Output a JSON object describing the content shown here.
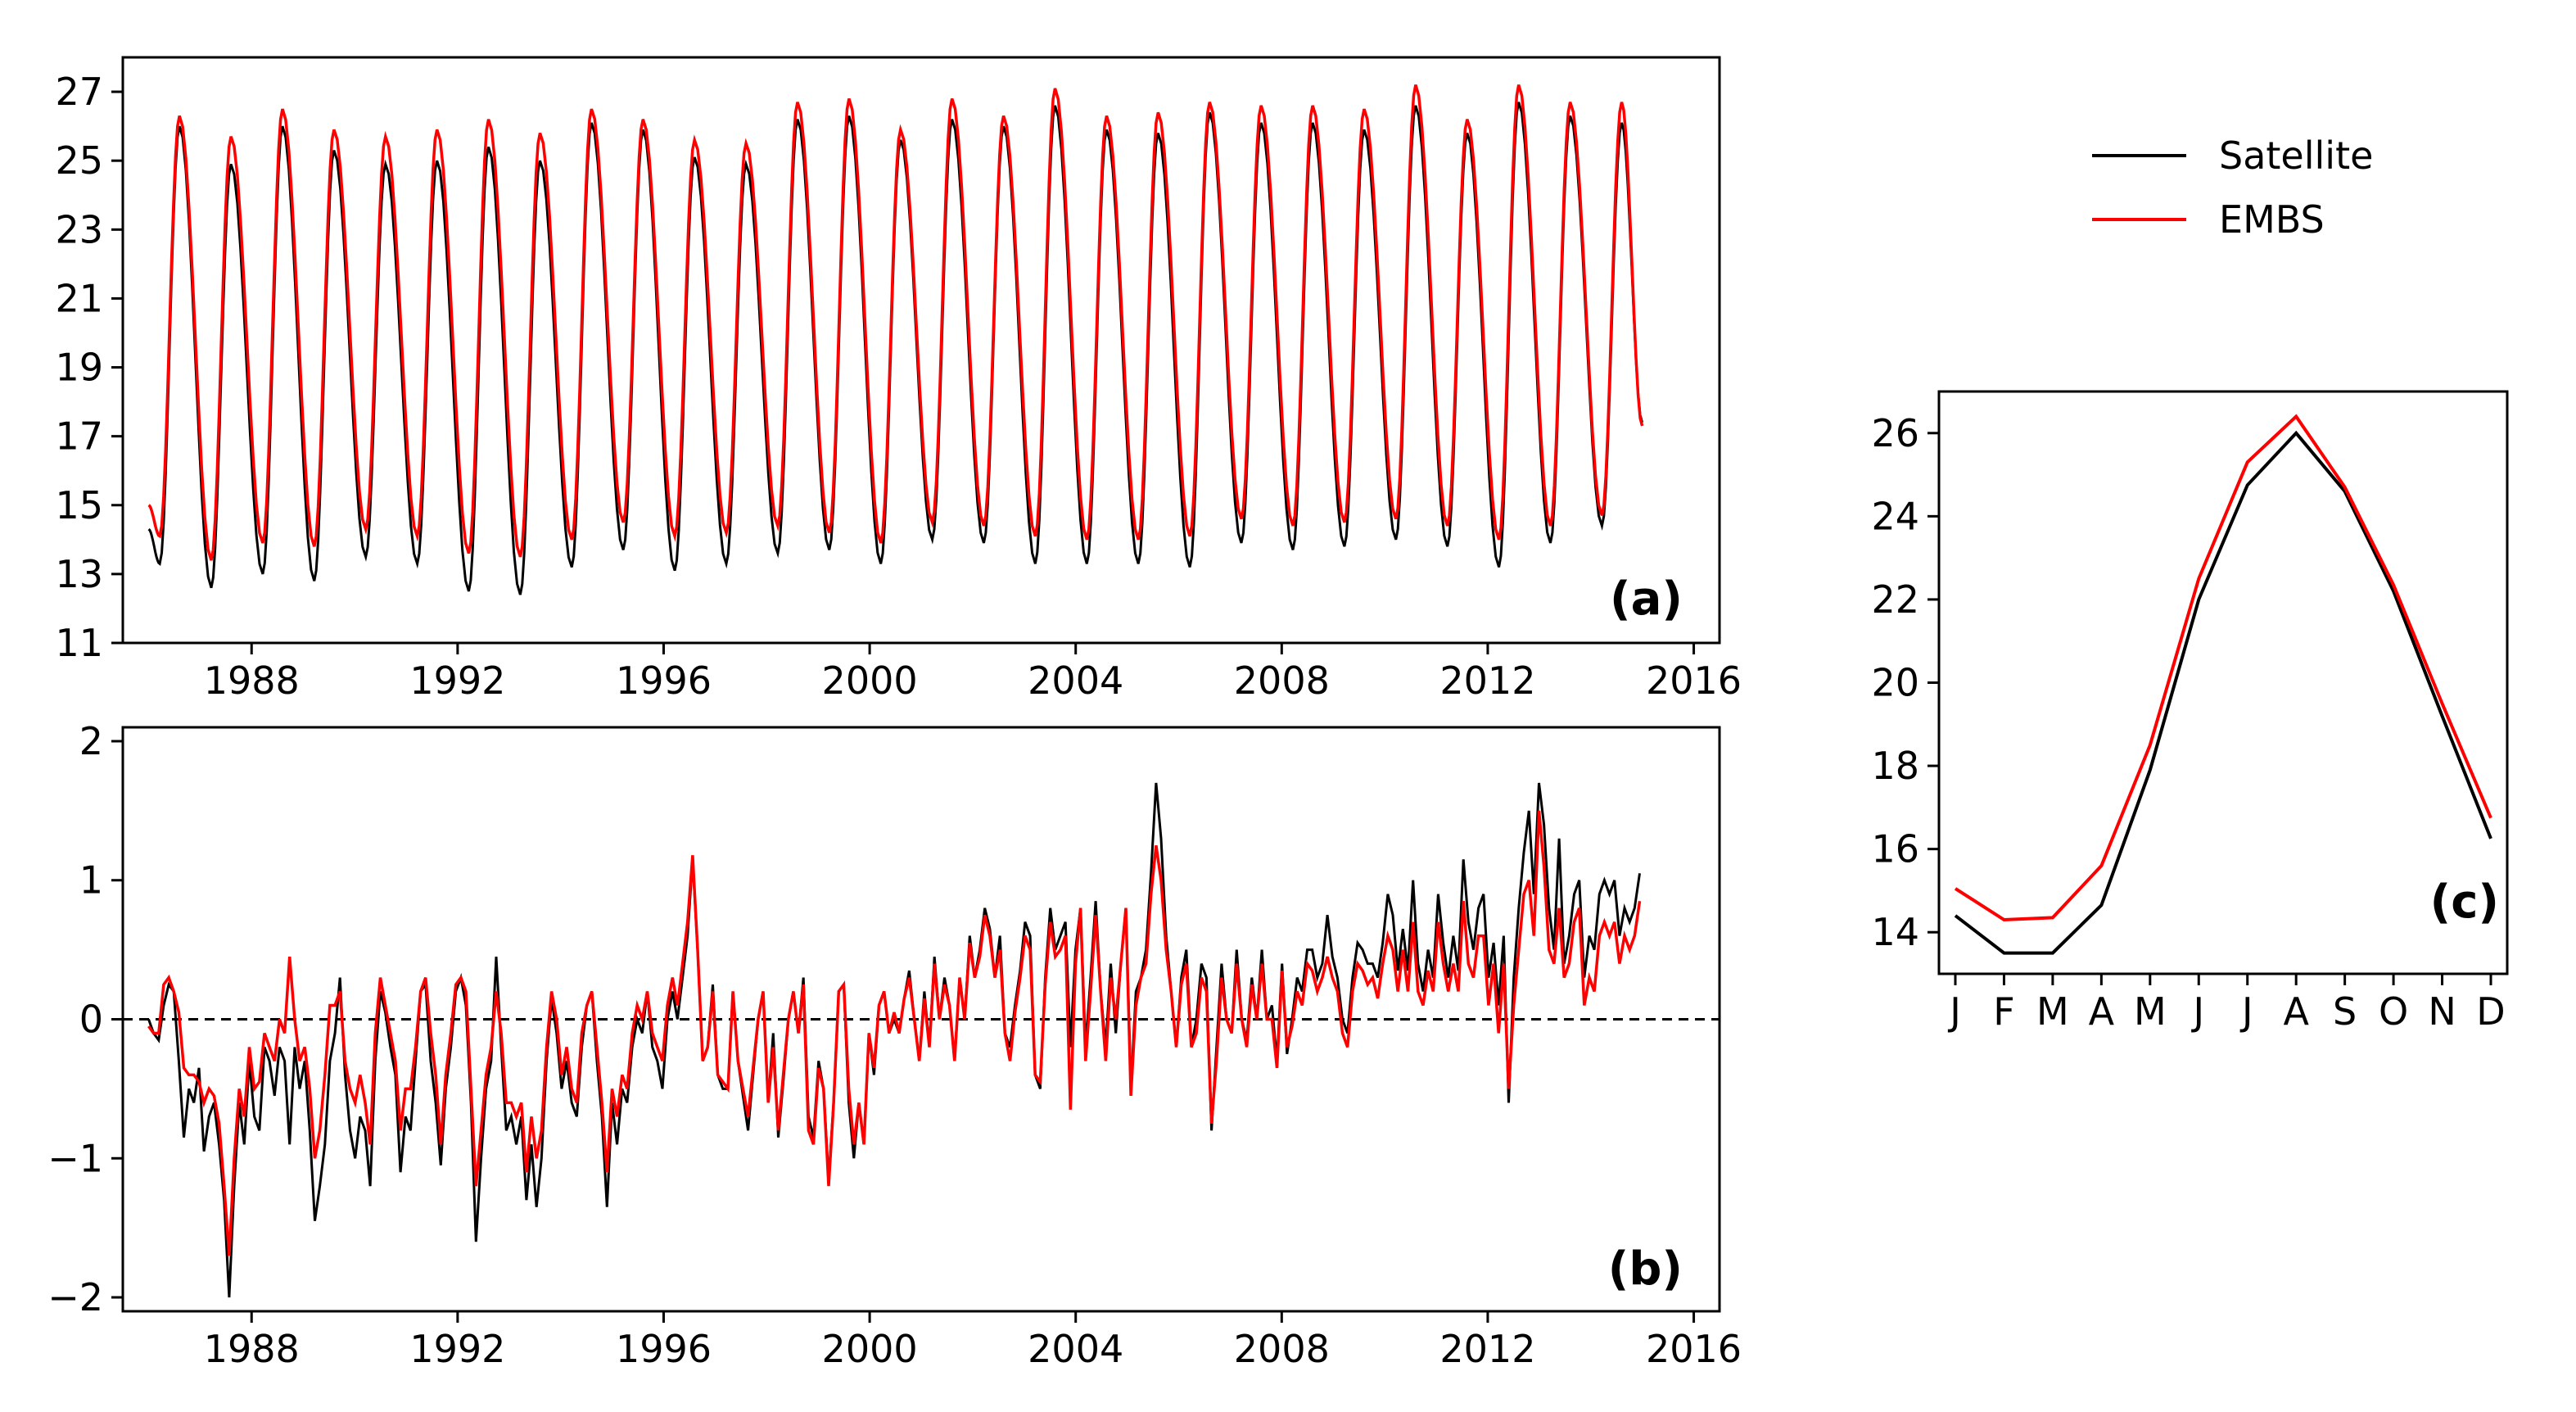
{
  "colors": {
    "satellite": "#000000",
    "embs": "#ff0000",
    "zero_line": "#000000"
  },
  "legend": {
    "placement": "top-right",
    "entries": [
      {
        "label": "Satellite",
        "color": "#000000"
      },
      {
        "label": "EMBS",
        "color": "#ff0000"
      }
    ]
  },
  "chart_data": [
    {
      "id": "a",
      "panel_label": "(a)",
      "type": "line",
      "x_range": [
        1985.5,
        2016.5
      ],
      "xticks": [
        1988,
        1992,
        1996,
        2000,
        2004,
        2008,
        2012,
        2016
      ],
      "ylim": [
        11,
        28
      ],
      "yticks": [
        11,
        13,
        15,
        17,
        19,
        21,
        23,
        25,
        27
      ],
      "x_start": 1986.0,
      "x_step": 0.08333,
      "seasonal_phase": "monthly cycle, maximum in August, minimum in February-March",
      "annual_extrema": {
        "years": [
          1986,
          1987,
          1988,
          1989,
          1990,
          1991,
          1992,
          1993,
          1994,
          1995,
          1996,
          1997,
          1998,
          1999,
          2000,
          2001,
          2002,
          2003,
          2004,
          2005,
          2006,
          2007,
          2008,
          2009,
          2010,
          2011,
          2012,
          2013,
          2014
        ],
        "satellite_min": [
          13.3,
          12.6,
          13.0,
          12.8,
          13.5,
          13.3,
          12.5,
          12.4,
          13.2,
          13.7,
          13.1,
          13.3,
          13.6,
          13.7,
          13.3,
          14.0,
          13.9,
          13.3,
          13.3,
          13.3,
          13.2,
          13.9,
          13.7,
          13.8,
          14.0,
          13.8,
          13.2,
          13.9,
          14.4
        ],
        "satellite_max": [
          26.0,
          24.9,
          26.0,
          25.3,
          24.9,
          25.0,
          25.4,
          25.0,
          26.1,
          25.9,
          25.1,
          24.9,
          26.2,
          26.3,
          25.6,
          26.2,
          26.0,
          26.6,
          25.9,
          25.8,
          26.4,
          26.1,
          26.1,
          25.9,
          26.6,
          25.8,
          26.7,
          26.3,
          26.1
        ],
        "embs_min": [
          14.1,
          13.4,
          13.9,
          13.8,
          14.3,
          14.1,
          13.6,
          13.5,
          14.0,
          14.5,
          14.1,
          14.2,
          14.4,
          14.2,
          13.9,
          14.5,
          14.4,
          14.1,
          14.0,
          14.0,
          14.1,
          14.6,
          14.4,
          14.5,
          14.6,
          14.4,
          14.0,
          14.4,
          14.7
        ],
        "embs_max": [
          26.3,
          25.7,
          26.5,
          25.9,
          25.7,
          25.9,
          26.2,
          25.8,
          26.5,
          26.2,
          25.6,
          25.5,
          26.7,
          26.8,
          25.9,
          26.8,
          26.3,
          27.1,
          26.3,
          26.4,
          26.7,
          26.6,
          26.6,
          26.5,
          27.2,
          26.2,
          27.2,
          26.7,
          26.7
        ]
      },
      "end_value": {
        "satellite": 17.4,
        "embs": 17.3
      },
      "series": [
        {
          "name": "Satellite",
          "color": "#000000"
        },
        {
          "name": "EMBS",
          "color": "#ff0000"
        }
      ]
    },
    {
      "id": "b",
      "panel_label": "(b)",
      "type": "line",
      "x_range": [
        1985.5,
        2016.5
      ],
      "xticks": [
        1988,
        1992,
        1996,
        2000,
        2004,
        2008,
        2012,
        2016
      ],
      "ylim": [
        -2.1,
        2.1
      ],
      "yticks": [
        -2,
        -1,
        0,
        1,
        2
      ],
      "ytick_labels": [
        "−2",
        "−1",
        "0",
        "1",
        "2"
      ],
      "reference_line": {
        "y": 0,
        "style": "dashed"
      },
      "x_start": 1986.0,
      "x_step": 0.08333,
      "series": [
        {
          "name": "Satellite",
          "color": "#000000",
          "values": [
            0.0,
            -0.1,
            -0.15,
            0.1,
            0.25,
            0.2,
            -0.3,
            -0.85,
            -0.5,
            -0.6,
            -0.35,
            -0.95,
            -0.7,
            -0.6,
            -0.9,
            -1.3,
            -2.0,
            -1.2,
            -0.6,
            -0.9,
            -0.3,
            -0.7,
            -0.8,
            -0.2,
            -0.3,
            -0.55,
            -0.2,
            -0.3,
            -0.9,
            -0.2,
            -0.5,
            -0.3,
            -0.8,
            -1.45,
            -1.2,
            -0.9,
            -0.3,
            -0.1,
            0.3,
            -0.4,
            -0.8,
            -1.0,
            -0.7,
            -0.8,
            -1.2,
            -0.3,
            0.2,
            0.05,
            -0.2,
            -0.4,
            -1.1,
            -0.7,
            -0.8,
            -0.3,
            0.2,
            0.25,
            -0.3,
            -0.6,
            -1.05,
            -0.5,
            -0.2,
            0.2,
            0.3,
            0.1,
            -0.6,
            -1.6,
            -1.0,
            -0.5,
            -0.3,
            0.45,
            -0.2,
            -0.8,
            -0.7,
            -0.9,
            -0.7,
            -1.3,
            -0.9,
            -1.35,
            -1.0,
            -0.3,
            0.15,
            -0.1,
            -0.5,
            -0.3,
            -0.6,
            -0.7,
            -0.2,
            0.1,
            0.2,
            -0.3,
            -0.7,
            -1.35,
            -0.6,
            -0.9,
            -0.5,
            -0.6,
            -0.2,
            0.0,
            -0.1,
            0.2,
            -0.2,
            -0.3,
            -0.5,
            0.0,
            0.2,
            0.0,
            0.3,
            0.6,
            1.15,
            0.5,
            -0.3,
            -0.2,
            0.25,
            -0.4,
            -0.5,
            -0.5,
            0.2,
            -0.3,
            -0.55,
            -0.8,
            -0.4,
            0.0,
            0.2,
            -0.6,
            -0.1,
            -0.85,
            -0.45,
            0.0,
            0.2,
            -0.1,
            0.3,
            -0.7,
            -0.85,
            -0.3,
            -0.5,
            -1.15,
            -0.6,
            0.2,
            0.25,
            -0.6,
            -1.0,
            -0.6,
            -0.9,
            -0.1,
            -0.4,
            0.1,
            0.2,
            -0.1,
            0.0,
            -0.1,
            0.15,
            0.35,
            0.0,
            -0.3,
            0.2,
            -0.2,
            0.45,
            0.0,
            0.3,
            0.1,
            -0.3,
            0.3,
            0.0,
            0.6,
            0.3,
            0.5,
            0.8,
            0.65,
            0.3,
            0.6,
            -0.1,
            -0.2,
            0.1,
            0.35,
            0.7,
            0.6,
            -0.4,
            -0.5,
            0.3,
            0.8,
            0.5,
            0.6,
            0.7,
            -0.2,
            0.5,
            0.8,
            -0.2,
            0.3,
            0.85,
            0.2,
            -0.2,
            0.4,
            -0.1,
            0.4,
            0.8,
            -0.5,
            0.2,
            0.3,
            0.5,
            1.05,
            1.7,
            1.3,
            0.6,
            0.2,
            -0.2,
            0.3,
            0.5,
            -0.2,
            0.0,
            0.4,
            0.3,
            -0.8,
            -0.2,
            0.4,
            0.0,
            -0.1,
            0.5,
            0.0,
            -0.15,
            0.3,
            0.0,
            0.5,
            0.0,
            0.1,
            -0.3,
            0.4,
            -0.25,
            0.0,
            0.3,
            0.2,
            0.5,
            0.5,
            0.3,
            0.4,
            0.75,
            0.45,
            0.3,
            0.0,
            -0.1,
            0.3,
            0.55,
            0.5,
            0.4,
            0.4,
            0.3,
            0.55,
            0.9,
            0.75,
            0.35,
            0.65,
            0.35,
            1.0,
            0.4,
            0.2,
            0.5,
            0.3,
            0.9,
            0.55,
            0.3,
            0.6,
            0.35,
            1.15,
            0.7,
            0.5,
            0.8,
            0.9,
            0.3,
            0.55,
            0.1,
            0.6,
            -0.6,
            0.3,
            0.8,
            1.2,
            1.5,
            0.9,
            1.7,
            1.4,
            0.8,
            0.5,
            1.3,
            0.4,
            0.6,
            0.9,
            1.0,
            0.3,
            0.6,
            0.5,
            0.9,
            1.0,
            0.9,
            1.0,
            0.6,
            0.8,
            0.7,
            0.8,
            1.05
          ]
        },
        {
          "name": "EMBS",
          "color": "#ff0000",
          "values": [
            -0.05,
            -0.1,
            -0.1,
            0.25,
            0.3,
            0.2,
            0.05,
            -0.35,
            -0.4,
            -0.4,
            -0.45,
            -0.6,
            -0.5,
            -0.55,
            -0.75,
            -1.2,
            -1.7,
            -1.0,
            -0.5,
            -0.7,
            -0.2,
            -0.5,
            -0.45,
            -0.1,
            -0.2,
            -0.3,
            0.0,
            -0.1,
            0.45,
            0.0,
            -0.3,
            -0.2,
            -0.5,
            -1.0,
            -0.8,
            -0.4,
            0.1,
            0.1,
            0.2,
            -0.3,
            -0.5,
            -0.6,
            -0.4,
            -0.6,
            -0.9,
            -0.1,
            0.3,
            0.1,
            -0.1,
            -0.3,
            -0.8,
            -0.5,
            -0.5,
            -0.2,
            0.2,
            0.3,
            -0.1,
            -0.4,
            -0.9,
            -0.4,
            -0.1,
            0.25,
            0.3,
            0.2,
            -0.5,
            -1.2,
            -0.8,
            -0.4,
            -0.2,
            0.2,
            -0.1,
            -0.6,
            -0.6,
            -0.7,
            -0.6,
            -1.1,
            -0.7,
            -1.0,
            -0.8,
            -0.2,
            0.2,
            0.0,
            -0.4,
            -0.2,
            -0.5,
            -0.6,
            -0.1,
            0.1,
            0.2,
            -0.2,
            -0.6,
            -1.1,
            -0.5,
            -0.7,
            -0.4,
            -0.5,
            -0.1,
            0.1,
            0.0,
            0.2,
            -0.1,
            -0.2,
            -0.3,
            0.1,
            0.3,
            0.1,
            0.4,
            0.7,
            1.18,
            0.5,
            -0.3,
            -0.2,
            0.2,
            -0.4,
            -0.45,
            -0.5,
            0.2,
            -0.3,
            -0.5,
            -0.7,
            -0.35,
            0.0,
            0.2,
            -0.6,
            -0.2,
            -0.8,
            -0.4,
            0.0,
            0.2,
            -0.1,
            0.25,
            -0.8,
            -0.9,
            -0.35,
            -0.5,
            -1.2,
            -0.6,
            0.2,
            0.25,
            -0.5,
            -0.9,
            -0.6,
            -0.9,
            -0.1,
            -0.35,
            0.1,
            0.2,
            -0.1,
            0.05,
            -0.1,
            0.15,
            0.3,
            0.0,
            -0.3,
            0.15,
            -0.2,
            0.4,
            0.0,
            0.25,
            0.1,
            -0.3,
            0.3,
            0.0,
            0.55,
            0.3,
            0.45,
            0.75,
            0.6,
            0.3,
            0.5,
            -0.1,
            -0.3,
            0.05,
            0.3,
            0.6,
            0.5,
            -0.4,
            -0.45,
            0.25,
            0.7,
            0.45,
            0.5,
            0.6,
            -0.65,
            0.4,
            0.8,
            -0.3,
            0.2,
            0.75,
            0.2,
            -0.3,
            0.3,
            0.0,
            0.4,
            0.8,
            -0.55,
            0.1,
            0.3,
            0.4,
            0.9,
            1.25,
            1.0,
            0.5,
            0.2,
            -0.2,
            0.25,
            0.4,
            -0.2,
            -0.1,
            0.3,
            0.2,
            -0.75,
            -0.3,
            0.3,
            0.0,
            -0.1,
            0.4,
            0.0,
            -0.2,
            0.25,
            0.0,
            0.4,
            0.0,
            0.0,
            -0.35,
            0.35,
            -0.2,
            -0.05,
            0.2,
            0.1,
            0.4,
            0.35,
            0.2,
            0.3,
            0.45,
            0.3,
            0.2,
            -0.1,
            -0.2,
            0.2,
            0.4,
            0.35,
            0.25,
            0.3,
            0.15,
            0.4,
            0.6,
            0.5,
            0.2,
            0.5,
            0.2,
            0.7,
            0.2,
            0.1,
            0.35,
            0.2,
            0.7,
            0.4,
            0.2,
            0.4,
            0.2,
            0.85,
            0.4,
            0.3,
            0.6,
            0.6,
            0.1,
            0.4,
            -0.1,
            0.4,
            -0.5,
            0.1,
            0.5,
            0.9,
            1.0,
            0.6,
            1.5,
            1.1,
            0.5,
            0.4,
            0.8,
            0.3,
            0.4,
            0.7,
            0.8,
            0.1,
            0.3,
            0.2,
            0.6,
            0.7,
            0.6,
            0.7,
            0.4,
            0.6,
            0.5,
            0.6,
            0.85
          ]
        }
      ]
    },
    {
      "id": "c",
      "panel_label": "(c)",
      "type": "line",
      "categories": [
        "J",
        "F",
        "M",
        "A",
        "M",
        "J",
        "J",
        "A",
        "S",
        "O",
        "N",
        "D"
      ],
      "ylim": [
        13,
        27
      ],
      "yticks": [
        14,
        16,
        18,
        20,
        22,
        24,
        26
      ],
      "series": [
        {
          "name": "Satellite",
          "color": "#000000",
          "values": [
            14.4,
            13.5,
            13.5,
            14.65,
            17.9,
            22.0,
            24.75,
            26.0,
            24.6,
            22.2,
            19.2,
            16.25
          ]
        },
        {
          "name": "EMBS",
          "color": "#ff0000",
          "values": [
            15.05,
            14.3,
            14.35,
            15.6,
            18.5,
            22.5,
            25.3,
            26.4,
            24.7,
            22.35,
            19.5,
            16.75
          ]
        }
      ]
    }
  ]
}
